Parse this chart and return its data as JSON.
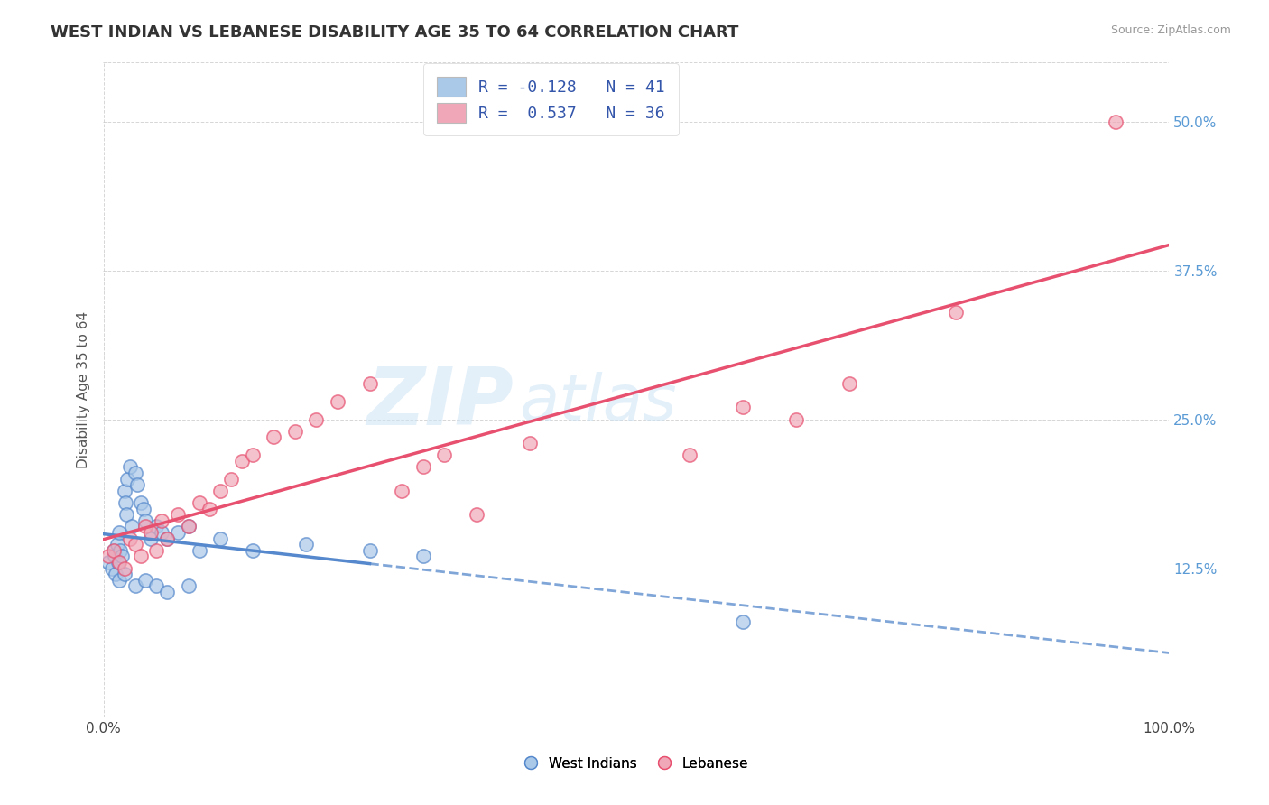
{
  "title": "WEST INDIAN VS LEBANESE DISABILITY AGE 35 TO 64 CORRELATION CHART",
  "source": "Source: ZipAtlas.com",
  "ylabel": "Disability Age 35 to 64",
  "legend_label1": "West Indians",
  "legend_label2": "Lebanese",
  "r1": -0.128,
  "n1": 41,
  "r2": 0.537,
  "n2": 36,
  "xlim": [
    0.0,
    100.0
  ],
  "ylim": [
    0.0,
    55.0
  ],
  "yticks": [
    12.5,
    25.0,
    37.5,
    50.0
  ],
  "ytick_labels": [
    "12.5%",
    "25.0%",
    "37.5%",
    "50.0%"
  ],
  "background_color": "#ffffff",
  "grid_color": "#cccccc",
  "color_west_indian": "#aac8e8",
  "color_lebanese": "#f0a8b8",
  "line_color_west_indian": "#5588cc",
  "line_color_lebanese": "#e85070",
  "title_color": "#333333",
  "source_color": "#999999",
  "legend_text_color": "#3355aa",
  "west_indian_x": [
    0.5,
    0.8,
    1.0,
    1.1,
    1.2,
    1.3,
    1.4,
    1.5,
    1.6,
    1.8,
    2.0,
    2.1,
    2.2,
    2.3,
    2.5,
    2.7,
    3.0,
    3.2,
    3.5,
    3.8,
    4.0,
    4.5,
    5.0,
    5.5,
    6.0,
    7.0,
    8.0,
    9.0,
    11.0,
    14.0,
    19.0,
    25.0,
    30.0,
    1.5,
    2.0,
    3.0,
    4.0,
    5.0,
    6.0,
    8.0,
    60.0
  ],
  "west_indian_y": [
    13.0,
    12.5,
    14.0,
    13.5,
    12.0,
    14.5,
    13.0,
    15.5,
    14.0,
    13.5,
    19.0,
    18.0,
    17.0,
    20.0,
    21.0,
    16.0,
    20.5,
    19.5,
    18.0,
    17.5,
    16.5,
    15.0,
    16.0,
    15.5,
    15.0,
    15.5,
    16.0,
    14.0,
    15.0,
    14.0,
    14.5,
    14.0,
    13.5,
    11.5,
    12.0,
    11.0,
    11.5,
    11.0,
    10.5,
    11.0,
    8.0
  ],
  "lebanese_x": [
    0.5,
    1.0,
    1.5,
    2.0,
    2.5,
    3.0,
    3.5,
    4.0,
    4.5,
    5.0,
    5.5,
    6.0,
    7.0,
    8.0,
    9.0,
    10.0,
    11.0,
    12.0,
    13.0,
    14.0,
    16.0,
    18.0,
    20.0,
    22.0,
    25.0,
    28.0,
    30.0,
    32.0,
    35.0,
    40.0,
    55.0,
    60.0,
    65.0,
    70.0,
    80.0,
    95.0
  ],
  "lebanese_y": [
    13.5,
    14.0,
    13.0,
    12.5,
    15.0,
    14.5,
    13.5,
    16.0,
    15.5,
    14.0,
    16.5,
    15.0,
    17.0,
    16.0,
    18.0,
    17.5,
    19.0,
    20.0,
    21.5,
    22.0,
    23.5,
    24.0,
    25.0,
    26.5,
    28.0,
    19.0,
    21.0,
    22.0,
    17.0,
    23.0,
    22.0,
    26.0,
    25.0,
    28.0,
    34.0,
    50.0
  ]
}
